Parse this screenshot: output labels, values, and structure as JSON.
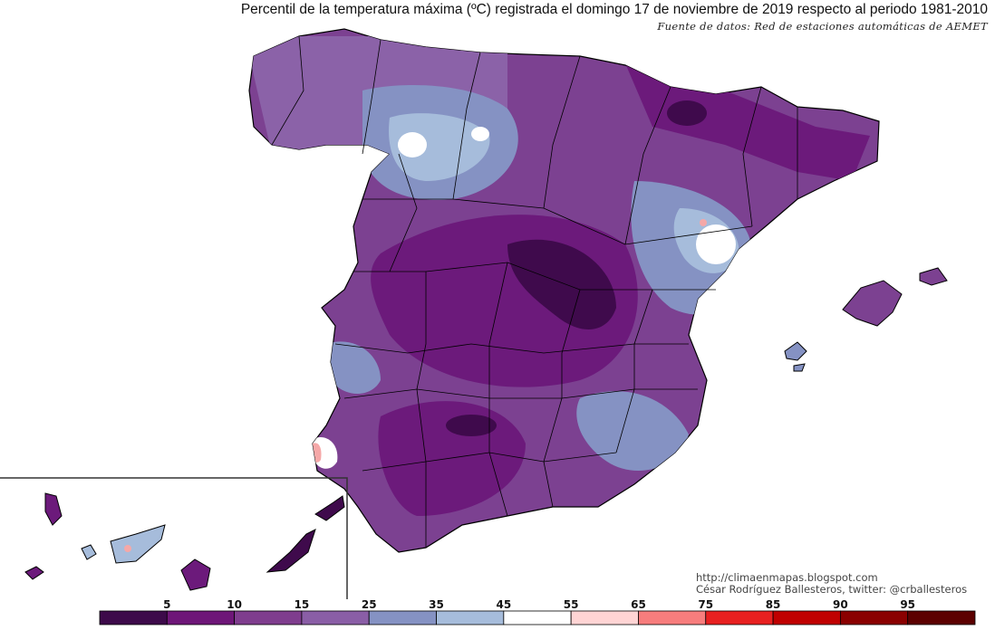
{
  "title": "Percentil de la temperatura máxima (ºC) registrada el domingo 17 de noviembre de 2019 respecto al periodo 1981-2010",
  "source": "Fuente de datos: Red de estaciones automáticas de AEMET",
  "credit": {
    "url": "http://climaenmapas.blogspot.com",
    "author": "César Rodríguez Ballesteros, twitter: @crballesteros"
  },
  "legend": {
    "labels": [
      "5",
      "10",
      "15",
      "25",
      "35",
      "45",
      "55",
      "65",
      "75",
      "85",
      "90",
      "95"
    ],
    "colors": [
      "#3d0a4a",
      "#6e1678",
      "#7f3d8e",
      "#8a5ea6",
      "#8592c3",
      "#a6bcdb",
      "#ffffff",
      "#ffd4d4",
      "#f77d7d",
      "#e82020",
      "#c00000",
      "#8a0000",
      "#5c0000"
    ]
  },
  "palette": {
    "deep": "#3f0a4c",
    "dark": "#6c1a7b",
    "mid": "#7c4191",
    "light": "#8b62a8",
    "blue": "#8592c3",
    "paleblue": "#a6bcdb",
    "white": "#ffffff",
    "pink": "#f5a8a8",
    "red": "#e84040"
  }
}
